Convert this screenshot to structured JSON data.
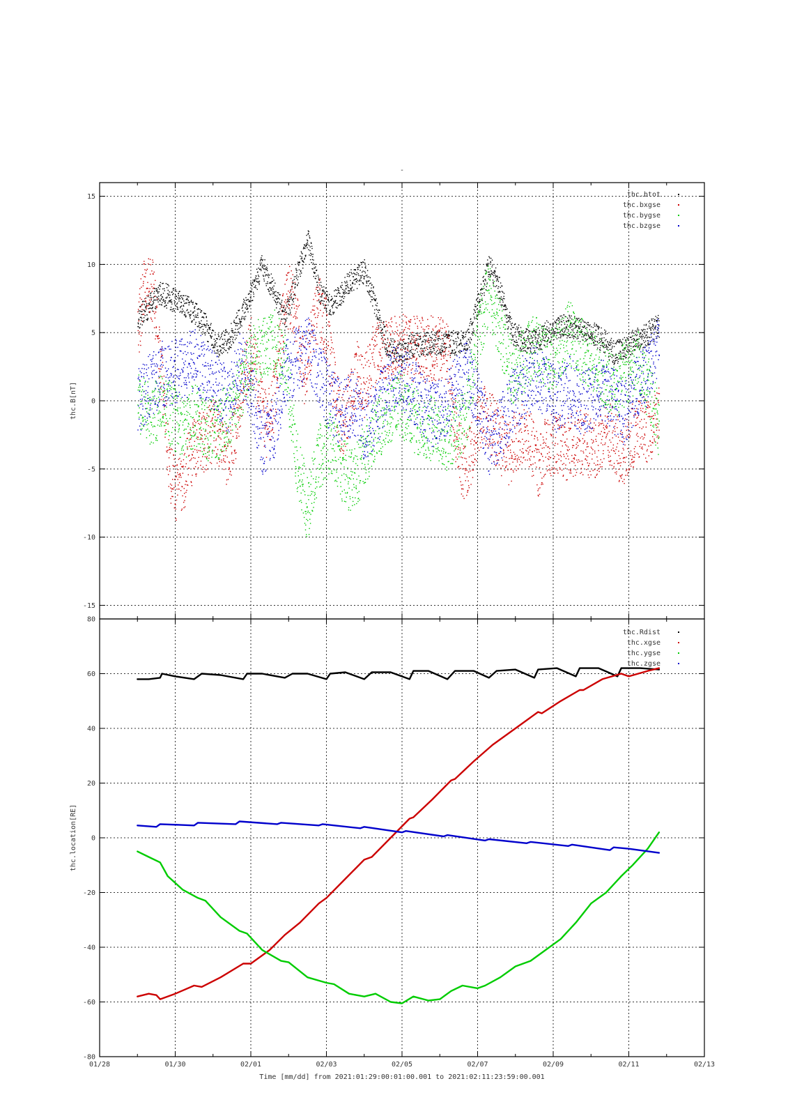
{
  "page_title": "-",
  "colors": {
    "black": "#000000",
    "red": "#cc0000",
    "green": "#00cc00",
    "blue": "#0000cc",
    "grid": "#333333",
    "frame": "#000000"
  },
  "x_axis": {
    "label": "Time [mm/dd]  from 2021:01:29:00:01:00.001  to  2021:02:11:23:59:00.001",
    "range_days": [
      -1,
      15
    ],
    "ticks": [
      {
        "day": -1,
        "label": "01/28"
      },
      {
        "day": 1,
        "label": "01/30"
      },
      {
        "day": 3,
        "label": "02/01"
      },
      {
        "day": 5,
        "label": "02/03"
      },
      {
        "day": 7,
        "label": "02/05"
      },
      {
        "day": 9,
        "label": "02/07"
      },
      {
        "day": 11,
        "label": "02/09"
      },
      {
        "day": 13,
        "label": "02/11"
      },
      {
        "day": 15,
        "label": "02/13"
      }
    ]
  },
  "chart_data": [
    {
      "type": "scatter",
      "ylabel": "thc.B[nT]",
      "ylim": [
        -16,
        16
      ],
      "yticks": [
        15,
        10,
        5,
        0,
        -5,
        -10,
        -15
      ],
      "grid": true,
      "legend_position": "top-right",
      "x_unit": "days since 2021-01-29 00:00",
      "series": [
        {
          "name": "thc.btot",
          "color": "black",
          "x": [
            0,
            0.3,
            0.6,
            0.9,
            1.2,
            1.5,
            1.8,
            2.1,
            2.4,
            2.7,
            3.0,
            3.3,
            3.6,
            3.9,
            4.2,
            4.5,
            4.8,
            5.1,
            5.4,
            5.7,
            6.0,
            6.3,
            6.6,
            6.9,
            7.2,
            7.5,
            7.8,
            8.1,
            8.4,
            8.7,
            9.0,
            9.3,
            9.6,
            9.9,
            10.2,
            10.5,
            10.8,
            11.1,
            11.4,
            11.7,
            12.0,
            12.3,
            12.6,
            12.9,
            13.2,
            13.5,
            13.8
          ],
          "y": [
            6,
            7,
            8,
            7.5,
            7,
            6.5,
            5.5,
            4,
            4.5,
            6,
            8,
            10,
            8,
            6,
            9,
            12,
            8,
            7,
            8,
            9,
            9.5,
            7,
            4,
            3.5,
            4,
            4.2,
            4.3,
            4.2,
            4.3,
            4.2,
            7,
            10,
            8,
            5,
            4.5,
            4.3,
            5,
            5.5,
            5.5,
            5.2,
            5,
            4.5,
            3.5,
            4,
            4.5,
            5,
            5.5
          ]
        },
        {
          "name": "thc.bxgse",
          "color": "red",
          "x": [
            0,
            0.2,
            0.4,
            0.6,
            0.8,
            1.0,
            1.2,
            1.4,
            1.6,
            1.8,
            2.0,
            2.2,
            2.4,
            2.6,
            2.8,
            3.0,
            3.2,
            3.4,
            3.6,
            3.8,
            4.0,
            4.2,
            4.4,
            4.6,
            4.8,
            5.0,
            5.2,
            5.4,
            5.6,
            5.8,
            6.0,
            6.2,
            6.4,
            6.6,
            6.8,
            7.0,
            7.2,
            7.4,
            7.6,
            7.8,
            8.0,
            8.2,
            8.4,
            8.6,
            8.8,
            9.0,
            9.2,
            9.4,
            9.6,
            9.8,
            10.0,
            10.2,
            10.4,
            10.6,
            10.8,
            11.0,
            11.2,
            11.4,
            11.6,
            11.8,
            12.0,
            12.2,
            12.4,
            12.6,
            12.8,
            13.0,
            13.2,
            13.4,
            13.6,
            13.8
          ],
          "y": [
            5,
            9,
            8,
            3,
            -4,
            -7,
            -6,
            -4,
            -3,
            -3,
            -2,
            -3,
            -4,
            -2,
            2,
            4,
            1,
            -2,
            0,
            5,
            8,
            6,
            2,
            5,
            7,
            5,
            1,
            -2,
            0,
            2,
            1,
            3,
            4,
            3.5,
            4,
            4,
            3.8,
            3.9,
            3.8,
            3.9,
            3.8,
            3.7,
            -2,
            -5,
            -4,
            -2,
            -1,
            -2,
            -3,
            -4,
            -3,
            -2,
            -3,
            -5,
            -3.5,
            -3,
            -3.5,
            -3.5,
            -3,
            -3,
            -3.5,
            -3,
            -2,
            -3,
            -4,
            -3,
            -2,
            -2,
            -2.5,
            -1
          ]
        },
        {
          "name": "thc.bygse",
          "color": "green",
          "x": [
            0,
            0.3,
            0.6,
            0.9,
            1.2,
            1.5,
            1.8,
            2.1,
            2.4,
            2.7,
            3.0,
            3.3,
            3.6,
            3.9,
            4.2,
            4.5,
            4.8,
            5.1,
            5.4,
            5.7,
            6.0,
            6.3,
            6.6,
            6.9,
            7.2,
            7.5,
            7.8,
            8.1,
            8.4,
            8.7,
            9.0,
            9.3,
            9.6,
            9.9,
            10.2,
            10.5,
            10.8,
            11.1,
            11.4,
            11.7,
            12.0,
            12.3,
            12.6,
            12.9,
            13.2,
            13.5,
            13.8
          ],
          "y": [
            0,
            -1,
            -0.5,
            -1,
            -2,
            -1,
            -2,
            -2,
            -1,
            1,
            3,
            4,
            4.5,
            3,
            -4,
            -8,
            -4,
            -3,
            -5,
            -6,
            -4,
            -2,
            -1,
            0,
            -1,
            -2,
            -2,
            -3,
            -2,
            -1,
            5,
            8,
            5,
            2,
            3,
            4,
            3,
            3.5,
            5,
            4,
            3,
            2,
            1,
            2,
            3,
            1,
            -2
          ]
        },
        {
          "name": "thc.bzgse",
          "color": "blue",
          "x": [
            0,
            0.3,
            0.6,
            0.9,
            1.2,
            1.5,
            1.8,
            2.1,
            2.4,
            2.7,
            3.0,
            3.3,
            3.6,
            3.9,
            4.2,
            4.5,
            4.8,
            5.1,
            5.4,
            5.7,
            6.0,
            6.3,
            6.6,
            6.9,
            7.2,
            7.5,
            7.8,
            8.1,
            8.4,
            8.7,
            9.0,
            9.3,
            9.6,
            9.9,
            10.2,
            10.5,
            10.8,
            11.1,
            11.4,
            11.7,
            12.0,
            12.3,
            12.6,
            12.9,
            13.2,
            13.5,
            13.8
          ],
          "y": [
            0,
            1,
            2,
            2,
            2.5,
            3,
            2,
            1,
            0,
            3,
            1,
            -3,
            -2,
            2,
            3,
            4,
            2,
            0,
            -1,
            0,
            -2,
            -1,
            1,
            2,
            1,
            0,
            -1,
            -0.5,
            1,
            2,
            0,
            -3,
            -2,
            0,
            1,
            2,
            1,
            0,
            1,
            0,
            0,
            1,
            0,
            -1,
            1,
            2,
            4
          ]
        }
      ]
    },
    {
      "type": "line",
      "ylabel": "thc.location[RE]",
      "ylim": [
        -80,
        80
      ],
      "yticks": [
        80,
        60,
        40,
        20,
        0,
        -20,
        -40,
        -60,
        -80
      ],
      "grid": true,
      "legend_position": "top-right",
      "x_unit": "days since 2021-01-29 00:00",
      "series": [
        {
          "name": "thc.Rdist",
          "color": "black",
          "x": [
            0,
            0.3,
            0.6,
            0.65,
            1.0,
            1.5,
            1.7,
            2.2,
            2.8,
            2.9,
            3.3,
            3.9,
            4.1,
            4.5,
            5.0,
            5.1,
            5.5,
            6.0,
            6.2,
            6.7,
            7.2,
            7.3,
            7.7,
            8.2,
            8.4,
            8.9,
            9.3,
            9.5,
            10.0,
            10.5,
            10.6,
            11.1,
            11.6,
            11.7,
            12.2,
            12.7,
            12.8,
            13.3,
            13.8
          ],
          "y": [
            58,
            58,
            58.5,
            60,
            59,
            58,
            60,
            59.5,
            58,
            60,
            60,
            58.5,
            60,
            60,
            58,
            60,
            60.5,
            58,
            60.5,
            60.5,
            58,
            61,
            61,
            58,
            61,
            61,
            58.5,
            61,
            61.5,
            58.5,
            61.5,
            62,
            59,
            62,
            62,
            59,
            62,
            62,
            61.5
          ]
        },
        {
          "name": "thc.xgse",
          "color": "red",
          "x": [
            0,
            0.3,
            0.5,
            0.6,
            1.0,
            1.5,
            1.7,
            2.2,
            2.8,
            3.0,
            3.5,
            3.9,
            4.3,
            4.8,
            5.0,
            5.5,
            6.0,
            6.2,
            6.7,
            7.2,
            7.3,
            7.8,
            8.3,
            8.4,
            8.9,
            9.4,
            9.5,
            10.0,
            10.6,
            10.7,
            11.2,
            11.7,
            11.8,
            12.3,
            12.8,
            13.0,
            13.5,
            13.8
          ],
          "y": [
            -58,
            -57,
            -57.5,
            -59,
            -57,
            -54,
            -54.5,
            -51,
            -46,
            -46,
            -41,
            -35.5,
            -31,
            -24,
            -22,
            -15,
            -8,
            -7,
            0,
            7,
            7.5,
            14,
            21,
            21.5,
            28,
            34,
            35,
            40,
            46,
            45.5,
            50,
            54,
            54,
            58,
            60,
            59,
            61,
            62
          ]
        },
        {
          "name": "thc.ygse",
          "color": "green",
          "x": [
            0,
            0.3,
            0.6,
            0.8,
            1.2,
            1.6,
            1.8,
            2.2,
            2.7,
            2.9,
            3.3,
            3.8,
            4.0,
            4.5,
            5.0,
            5.2,
            5.6,
            6.0,
            6.3,
            6.7,
            7.0,
            7.3,
            7.7,
            8.0,
            8.3,
            8.6,
            9.0,
            9.2,
            9.6,
            10.0,
            10.4,
            10.8,
            11.2,
            11.6,
            12.0,
            12.4,
            12.8,
            13.1,
            13.5,
            13.8
          ],
          "y": [
            -5,
            -7,
            -9,
            -14,
            -19,
            -22,
            -23,
            -29,
            -34,
            -35,
            -41,
            -45,
            -45.5,
            -51,
            -53,
            -53.5,
            -57,
            -58,
            -57,
            -60,
            -60.5,
            -58,
            -59.5,
            -59,
            -56,
            -54,
            -55,
            -54,
            -51,
            -47,
            -45,
            -41,
            -37,
            -31,
            -24,
            -20,
            -14,
            -10,
            -4,
            2
          ]
        },
        {
          "name": "thc.zgse",
          "color": "blue",
          "x": [
            0,
            0.5,
            0.6,
            1.5,
            1.6,
            2.6,
            2.7,
            3.7,
            3.8,
            4.8,
            4.9,
            5.9,
            6.0,
            7.0,
            7.1,
            8.1,
            8.2,
            9.2,
            9.3,
            10.3,
            10.4,
            11.4,
            11.5,
            12.5,
            12.6,
            13.0,
            13.8
          ],
          "y": [
            4.5,
            4,
            5,
            4.5,
            5.5,
            5,
            6,
            5,
            5.5,
            4.5,
            5,
            3.5,
            4,
            2,
            2.5,
            0.5,
            1,
            -1,
            -0.5,
            -2,
            -1.5,
            -3,
            -2.5,
            -4.5,
            -3.5,
            -4,
            -5.5
          ]
        }
      ]
    }
  ]
}
